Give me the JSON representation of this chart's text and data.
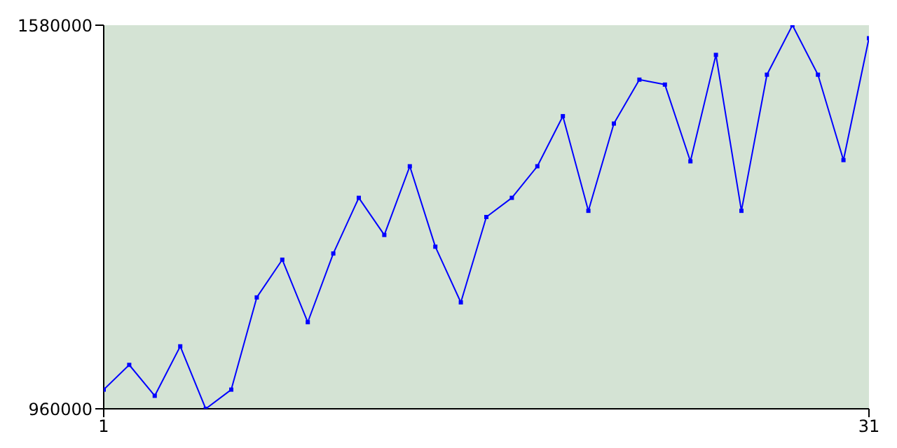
{
  "chart_data": {
    "type": "line",
    "x": [
      1,
      2,
      3,
      4,
      5,
      6,
      7,
      8,
      9,
      10,
      11,
      12,
      13,
      14,
      15,
      16,
      17,
      18,
      19,
      20,
      21,
      22,
      23,
      24,
      25,
      26,
      27,
      28,
      29,
      30,
      31
    ],
    "series": [
      {
        "color": "#0000ff",
        "values": [
          991000,
          1031000,
          981000,
          1061000,
          960000,
          991000,
          1140000,
          1201000,
          1100000,
          1211000,
          1301000,
          1241000,
          1352000,
          1222000,
          1132000,
          1270000,
          1301000,
          1352000,
          1433000,
          1280000,
          1421000,
          1492000,
          1484000,
          1360000,
          1532000,
          1280000,
          1500000,
          1580000,
          1500000,
          1362000,
          1559000
        ]
      }
    ],
    "xlim": [
      1,
      31
    ],
    "xticks": [
      1,
      31
    ],
    "ylim": [
      960000,
      1580000
    ],
    "yticks": [
      960000,
      1580000
    ],
    "marker": "square",
    "line_style": "solid",
    "grid": false
  }
}
